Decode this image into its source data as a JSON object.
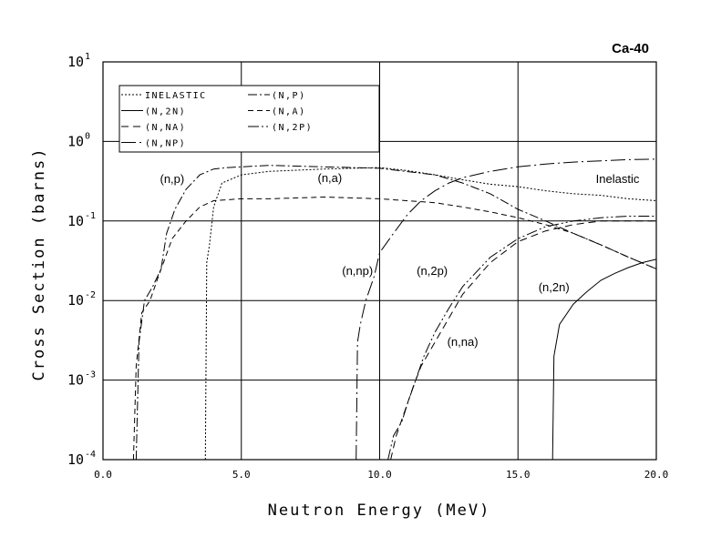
{
  "chart_data": {
    "type": "line",
    "title": "Ca-40",
    "xlabel": "Neutron Energy (MeV)",
    "ylabel": "Cross Section (barns)",
    "xscale": "linear",
    "yscale": "log",
    "xlim": [
      0,
      20
    ],
    "ylim": [
      0.0001,
      10
    ],
    "x_ticks": [
      "0.0",
      "5.0",
      "10.0",
      "15.0",
      "20.0"
    ],
    "y_ticks": [
      {
        "base": "10",
        "exp": "-4",
        "value": 0.0001
      },
      {
        "base": "10",
        "exp": "-3",
        "value": 0.001
      },
      {
        "base": "10",
        "exp": "-2",
        "value": 0.01
      },
      {
        "base": "10",
        "exp": "-1",
        "value": 0.1
      },
      {
        "base": "10",
        "exp": "0",
        "value": 1
      },
      {
        "base": "10",
        "exp": "1",
        "value": 10
      }
    ],
    "grid": true,
    "legend_position": "top-left",
    "legend": [
      {
        "label": "INELASTIC",
        "dash": "2,2"
      },
      {
        "label": "(N,P)",
        "dash": "10,3,2,3"
      },
      {
        "label": "(N,2N)",
        "dash": ""
      },
      {
        "label": "(N,A)",
        "dash": "6,4"
      },
      {
        "label": "(N,NA)",
        "dash": "8,5"
      },
      {
        "label": "(N,2P)",
        "dash": "12,3,2,3,2,3"
      },
      {
        "label": "(N,NP)",
        "dash": "16,4,2,4"
      }
    ],
    "series": [
      {
        "key": "inelastic",
        "dash": "2,2",
        "x": [
          3.7,
          3.75,
          3.85,
          4.0,
          4.3,
          5.0,
          6.0,
          8.0,
          10.0,
          11.0,
          12.0,
          13.0,
          14.0,
          15.0,
          16.0,
          17.0,
          18.0,
          19.0,
          20.0
        ],
        "y": [
          0.0001,
          0.03,
          0.05,
          0.15,
          0.3,
          0.38,
          0.42,
          0.45,
          0.47,
          0.43,
          0.38,
          0.33,
          0.29,
          0.27,
          0.24,
          0.22,
          0.21,
          0.19,
          0.18
        ]
      },
      {
        "key": "n_p",
        "dash": "10,3,2,3",
        "x": [
          1.2,
          1.3,
          1.5,
          1.8,
          2.1,
          2.3,
          2.6,
          3.0,
          3.5,
          4.0,
          4.5,
          5.0,
          6.0,
          8.0,
          10.0,
          12.0,
          13.0,
          14.0,
          15.0,
          16.0,
          17.0,
          18.0,
          19.0,
          20.0
        ],
        "y": [
          0.0001,
          0.003,
          0.01,
          0.015,
          0.025,
          0.07,
          0.14,
          0.25,
          0.38,
          0.45,
          0.47,
          0.48,
          0.5,
          0.48,
          0.46,
          0.38,
          0.3,
          0.22,
          0.14,
          0.1,
          0.07,
          0.05,
          0.035,
          0.025
        ]
      },
      {
        "key": "n_2n",
        "dash": "",
        "x": [
          16.25,
          16.3,
          16.5,
          17.0,
          17.5,
          18.0,
          18.5,
          19.0,
          19.5,
          20.0
        ],
        "y": [
          0.0001,
          0.002,
          0.005,
          0.009,
          0.013,
          0.018,
          0.022,
          0.026,
          0.03,
          0.033
        ]
      },
      {
        "key": "n_a",
        "dash": "6,4",
        "x": [
          1.1,
          1.2,
          1.4,
          1.7,
          2.0,
          2.5,
          3.0,
          3.5,
          4.0,
          5.0,
          6.0,
          8.0,
          10.0,
          12.0,
          13.0,
          14.0,
          15.0,
          16.0,
          17.0,
          18.0,
          19.0,
          20.0
        ],
        "y": [
          0.0001,
          0.0015,
          0.007,
          0.01,
          0.02,
          0.06,
          0.1,
          0.15,
          0.18,
          0.19,
          0.19,
          0.2,
          0.19,
          0.17,
          0.15,
          0.13,
          0.11,
          0.09,
          0.07,
          0.05,
          0.035,
          0.025
        ]
      },
      {
        "key": "n_na",
        "dash": "8,5",
        "x": [
          10.4,
          10.6,
          10.9,
          11.2,
          11.5,
          12.0,
          12.5,
          13.0,
          14.0,
          15.0,
          16.0,
          17.0,
          18.0,
          19.0,
          20.0
        ],
        "y": [
          0.0001,
          0.0002,
          0.0004,
          0.0008,
          0.0015,
          0.003,
          0.006,
          0.012,
          0.03,
          0.055,
          0.075,
          0.09,
          0.1,
          0.1,
          0.1
        ]
      },
      {
        "key": "n_2p",
        "dash": "12,3,2,3,2,3",
        "x": [
          10.3,
          10.5,
          10.8,
          11.0,
          11.3,
          11.6,
          12.0,
          12.5,
          13.0,
          14.0,
          15.0,
          16.0,
          17.0,
          18.0,
          19.0,
          20.0
        ],
        "y": [
          0.0001,
          0.0002,
          0.0003,
          0.0005,
          0.001,
          0.002,
          0.004,
          0.008,
          0.015,
          0.035,
          0.06,
          0.085,
          0.1,
          0.11,
          0.115,
          0.115
        ]
      },
      {
        "key": "n_np",
        "dash": "16,4,2,4",
        "x": [
          9.15,
          9.2,
          9.3,
          9.5,
          9.8,
          10.0,
          10.5,
          11.0,
          11.5,
          12.0,
          12.5,
          13.0,
          14.0,
          15.0,
          16.0,
          17.0,
          18.0,
          19.0,
          20.0
        ],
        "y": [
          0.0001,
          0.003,
          0.005,
          0.01,
          0.02,
          0.04,
          0.07,
          0.12,
          0.18,
          0.24,
          0.3,
          0.35,
          0.42,
          0.48,
          0.52,
          0.55,
          0.57,
          0.59,
          0.6
        ]
      }
    ],
    "annotations": [
      {
        "text": "(n,p)",
        "x": 2.5,
        "y": 0.3
      },
      {
        "text": "(n,a)",
        "x": 8.2,
        "y": 0.31
      },
      {
        "text": "Inelastic",
        "x": 18.6,
        "y": 0.3
      },
      {
        "text": "(n,np)",
        "x": 9.2,
        "y": 0.021
      },
      {
        "text": "(n,2p)",
        "x": 11.9,
        "y": 0.021
      },
      {
        "text": "(n,2n)",
        "x": 16.3,
        "y": 0.013
      },
      {
        "text": "(n,na)",
        "x": 13.0,
        "y": 0.0027
      }
    ]
  }
}
